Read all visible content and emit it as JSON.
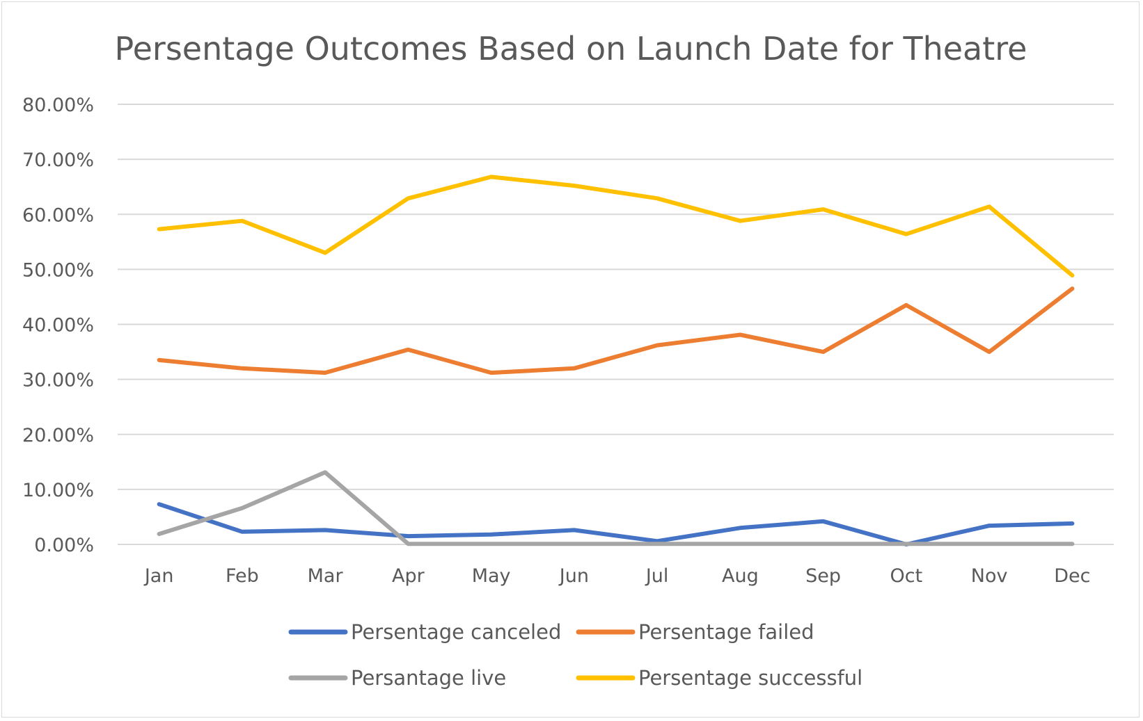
{
  "chart_data": {
    "type": "line",
    "title": "Persentage Outcomes Based on Launch Date for Theatre",
    "xlabel": "",
    "ylabel": "",
    "categories": [
      "Jan",
      "Feb",
      "Mar",
      "Apr",
      "May",
      "Jun",
      "Jul",
      "Aug",
      "Sep",
      "Oct",
      "Nov",
      "Dec"
    ],
    "ylim": [
      0,
      80
    ],
    "yticks": [
      0,
      10,
      20,
      30,
      40,
      50,
      60,
      70,
      80
    ],
    "ytick_labels": [
      "0.00%",
      "10.00%",
      "20.00%",
      "30.00%",
      "40.00%",
      "50.00%",
      "60.00%",
      "70.00%",
      "80.00%"
    ],
    "grid": true,
    "legend_position": "bottom",
    "series": [
      {
        "name": "Persentage canceled",
        "color": "#4472C4",
        "values": [
          7.3,
          2.3,
          2.6,
          1.5,
          1.8,
          2.6,
          0.6,
          3.0,
          4.2,
          0.0,
          3.4,
          3.8
        ]
      },
      {
        "name": "Persentage failed",
        "color": "#ED7D31",
        "values": [
          33.5,
          32.0,
          31.2,
          35.4,
          31.2,
          32.0,
          36.2,
          38.1,
          35.0,
          43.5,
          35.0,
          46.5
        ]
      },
      {
        "name": "Persantage live",
        "color": "#A5A5A5",
        "values": [
          1.9,
          6.6,
          13.1,
          0.1,
          0.1,
          0.1,
          0.1,
          0.1,
          0.1,
          0.1,
          0.1,
          0.1
        ]
      },
      {
        "name": "Persentage successful",
        "color": "#FFC000",
        "values": [
          57.3,
          58.8,
          53.0,
          62.9,
          66.8,
          65.2,
          62.9,
          58.8,
          60.9,
          56.4,
          61.4,
          48.9
        ]
      }
    ]
  }
}
